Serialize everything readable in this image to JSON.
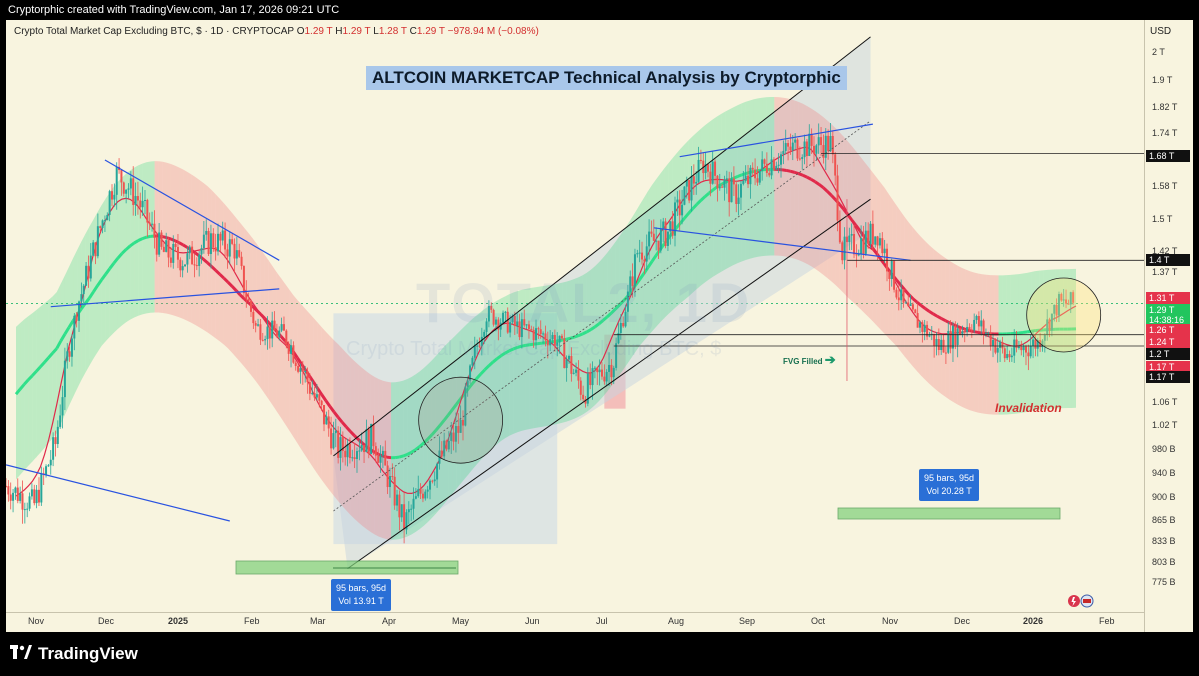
{
  "header": {
    "created_text": "Cryptorphic created with TradingView.com, Jan 17, 2026 09:21 UTC"
  },
  "legend": {
    "symbol": "Crypto Total Market Cap Excluding BTC, $ · 1D · CRYPTOCAP",
    "open_label": "O",
    "open": "1.29 T",
    "high_label": "H",
    "high": "1.29 T",
    "low_label": "L",
    "low": "1.28 T",
    "close_label": "C",
    "close": "1.29 T",
    "change": "−978.94 M (−0.08%)"
  },
  "watermark": {
    "ticker": "TOTAL2, 1D",
    "subtitle": "Crypto Total Market Cap Excluding BTC, $"
  },
  "annotations": {
    "title": "ALTCOIN MARKETCAP Technical Analysis by Cryptorphic",
    "fvg": "FVG Filled",
    "invalidation": "Invalidation",
    "range1_line1": "95 bars, 95d",
    "range1_line2": "Vol 13.91 T",
    "range2_line1": "95 bars, 95d",
    "range2_line2": "Vol 20.28 T"
  },
  "price_axis": {
    "currency": "USD",
    "ticks": [
      "2 T",
      "1.9 T",
      "1.82 T",
      "1.74 T",
      "1.66 T",
      "1.58 T",
      "1.5 T",
      "1.42 T",
      "1.37 T",
      "1.31 T",
      "1.24 T",
      "1.17 T",
      "1.1 T",
      "1.06 T",
      "1.02 T",
      "980 B",
      "940 B",
      "900 B",
      "865 B",
      "833 B",
      "803 B",
      "775 B"
    ],
    "tags": [
      {
        "label": "1.68 T",
        "style": "black"
      },
      {
        "label": "1.4 T",
        "style": "black"
      },
      {
        "label": "1.31 T",
        "style": "red"
      },
      {
        "label": "1.29 T",
        "style": "green"
      },
      {
        "label": "14:38:16",
        "style": "green"
      },
      {
        "label": "1.26 T",
        "style": "red"
      },
      {
        "label": "1.24 T",
        "style": "red"
      },
      {
        "label": "1.2 T",
        "style": "black"
      },
      {
        "label": "1.17 T",
        "style": "red"
      },
      {
        "label": "1.17 T",
        "style": "black"
      }
    ]
  },
  "date_axis": {
    "labels": [
      "Nov",
      "Dec",
      "2025",
      "Feb",
      "Mar",
      "Apr",
      "May",
      "Jun",
      "Jul",
      "Aug",
      "Sep",
      "Oct",
      "Nov",
      "Dec",
      "2026",
      "Feb"
    ],
    "bold": [
      "2025",
      "2026"
    ]
  },
  "footer": {
    "brand": "TradingView"
  },
  "colors": {
    "background": "#f8f4df",
    "bull_candle": "#26a69a",
    "bear_candle": "#ef5350",
    "band_green": "#28d37a",
    "band_red": "#f07f84",
    "ema_red": "#e0294a",
    "trendline_blue": "#2952e0",
    "channel_black": "#111111"
  },
  "chart_data": {
    "type": "candlestick",
    "x_unit": "date",
    "y_unit": "USD (total market cap ex-BTC)",
    "y_scale": "log",
    "ylim": [
      "775 B",
      "2 T"
    ],
    "xlim": [
      "2024-10-20",
      "2026-02-10"
    ],
    "series": [
      {
        "name": "TOTAL2 daily close (approx.)",
        "points": [
          {
            "x": "2024-10-20",
            "y": 0.92
          },
          {
            "x": "2024-11-01",
            "y": 0.89
          },
          {
            "x": "2024-11-10",
            "y": 0.99
          },
          {
            "x": "2024-11-20",
            "y": 1.3
          },
          {
            "x": "2024-12-01",
            "y": 1.52
          },
          {
            "x": "2024-12-06",
            "y": 1.62
          },
          {
            "x": "2024-12-15",
            "y": 1.55
          },
          {
            "x": "2024-12-25",
            "y": 1.42
          },
          {
            "x": "2025-01-05",
            "y": 1.4
          },
          {
            "x": "2025-01-15",
            "y": 1.45
          },
          {
            "x": "2025-01-25",
            "y": 1.43
          },
          {
            "x": "2025-02-03",
            "y": 1.22
          },
          {
            "x": "2025-02-15",
            "y": 1.2
          },
          {
            "x": "2025-02-28",
            "y": 1.07
          },
          {
            "x": "2025-03-10",
            "y": 0.98
          },
          {
            "x": "2025-03-25",
            "y": 1.0
          },
          {
            "x": "2025-04-07",
            "y": 0.86
          },
          {
            "x": "2025-04-20",
            "y": 0.95
          },
          {
            "x": "2025-05-01",
            "y": 1.02
          },
          {
            "x": "2025-05-12",
            "y": 1.26
          },
          {
            "x": "2025-05-25",
            "y": 1.22
          },
          {
            "x": "2025-06-10",
            "y": 1.19
          },
          {
            "x": "2025-06-22",
            "y": 1.08
          },
          {
            "x": "2025-07-05",
            "y": 1.14
          },
          {
            "x": "2025-07-15",
            "y": 1.42
          },
          {
            "x": "2025-07-28",
            "y": 1.47
          },
          {
            "x": "2025-08-12",
            "y": 1.65
          },
          {
            "x": "2025-08-25",
            "y": 1.56
          },
          {
            "x": "2025-09-10",
            "y": 1.66
          },
          {
            "x": "2025-09-20",
            "y": 1.7
          },
          {
            "x": "2025-10-05",
            "y": 1.71
          },
          {
            "x": "2025-10-10",
            "y": 1.42
          },
          {
            "x": "2025-10-25",
            "y": 1.47
          },
          {
            "x": "2025-11-05",
            "y": 1.28
          },
          {
            "x": "2025-11-20",
            "y": 1.17
          },
          {
            "x": "2025-12-05",
            "y": 1.24
          },
          {
            "x": "2025-12-18",
            "y": 1.15
          },
          {
            "x": "2026-01-01",
            "y": 1.18
          },
          {
            "x": "2026-01-10",
            "y": 1.29
          },
          {
            "x": "2026-01-17",
            "y": 1.29
          }
        ]
      }
    ],
    "levels": [
      "1.68 T",
      "1.4 T",
      "1.2 T",
      "1.17 T"
    ],
    "last_price": "1.29 T"
  }
}
